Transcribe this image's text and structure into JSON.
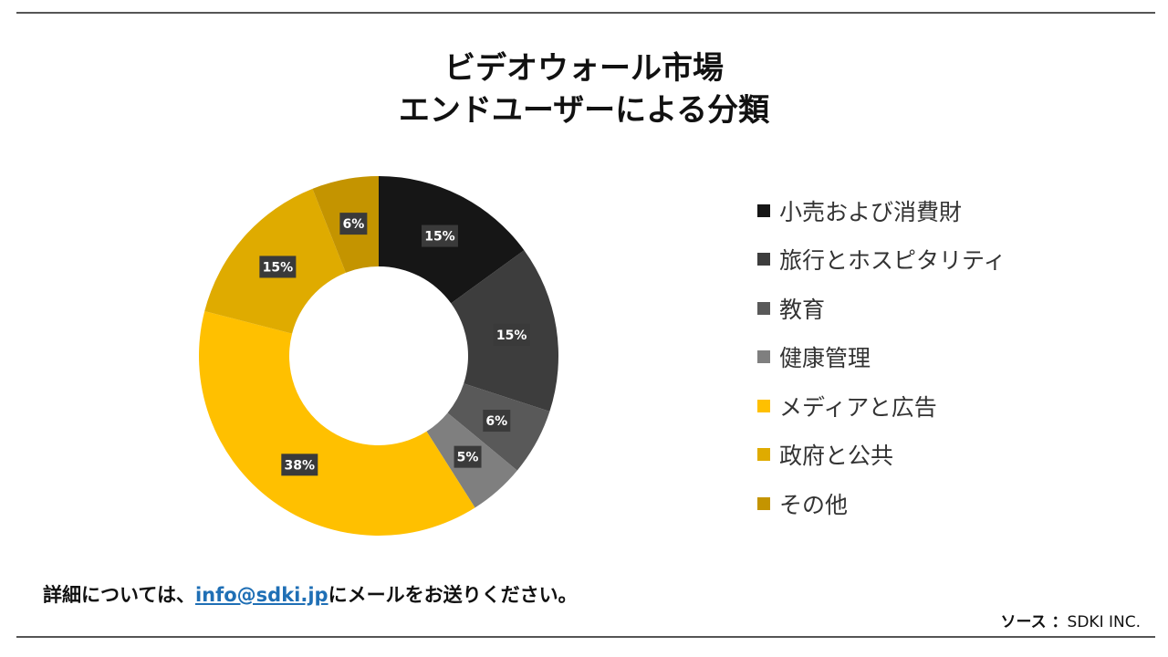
{
  "title": {
    "line1": "ビデオウォール市場",
    "line2": "エンドユーザーによる分類"
  },
  "chart_data": {
    "type": "pie",
    "donut": true,
    "legend_position": "right",
    "series": [
      {
        "name": "小売および消費財",
        "value": 15,
        "label": "15%",
        "color": "#161616"
      },
      {
        "name": "旅行とホスピタリティ",
        "value": 15,
        "label": "15%",
        "color": "#3d3d3d"
      },
      {
        "name": "教育",
        "value": 6,
        "label": "6%",
        "color": "#595959"
      },
      {
        "name": "健康管理",
        "value": 5,
        "label": "5%",
        "color": "#7f7f7f"
      },
      {
        "name": "メディアと広告",
        "value": 38,
        "label": "38%",
        "color": "#ffc000"
      },
      {
        "name": "政府と公共",
        "value": 15,
        "label": "15%",
        "color": "#dfab00"
      },
      {
        "name": "その他",
        "value": 6,
        "label": "6%",
        "color": "#c49400"
      }
    ]
  },
  "contact": {
    "prefix": "詳細については、",
    "email": "info@sdki.jp",
    "suffix": "にメールをお送りください。"
  },
  "source": {
    "label": "ソース ：",
    "value": "SDKI INC."
  }
}
